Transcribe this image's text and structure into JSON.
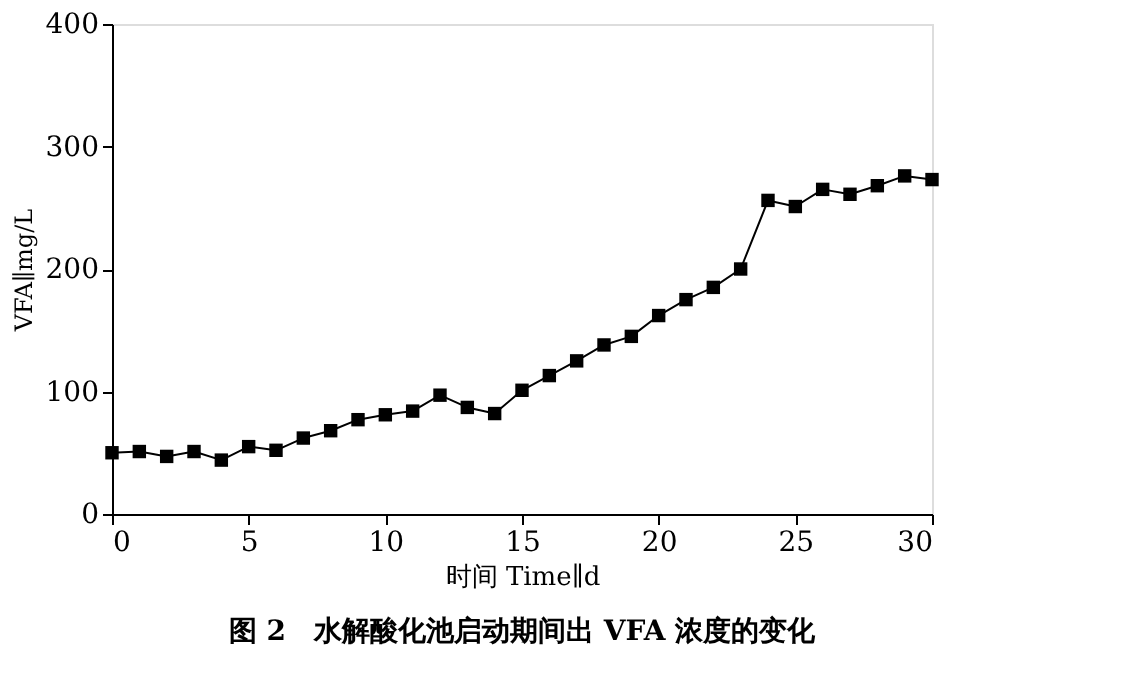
{
  "chart_data": {
    "type": "line",
    "title": "图 2　水解酸化池启动期间出 VFA 浓度的变化",
    "xlabel": "时间 Time∥d",
    "ylabel": "VFA∥mg/L",
    "x": [
      0,
      1,
      2,
      3,
      4,
      5,
      6,
      7,
      8,
      9,
      10,
      11,
      12,
      13,
      14,
      15,
      16,
      17,
      18,
      19,
      20,
      21,
      22,
      23,
      24,
      25,
      26,
      27,
      28,
      29,
      30
    ],
    "series": [
      {
        "color": "#000000",
        "values": [
          50,
          51,
          47,
          51,
          44,
          55,
          52,
          62,
          68,
          77,
          81,
          84,
          97,
          87,
          82,
          101,
          113,
          125,
          138,
          145,
          162,
          175,
          185,
          200,
          256,
          251,
          265,
          261,
          268,
          276,
          273
        ]
      }
    ],
    "xlim": [
      0,
      30
    ],
    "xticks": [
      0,
      5,
      10,
      15,
      20,
      25,
      30
    ],
    "ylim": [
      0,
      400
    ],
    "yticks": [
      0,
      100,
      200,
      300,
      400
    ],
    "grid": false,
    "legend": false,
    "marker": "square",
    "line_style": "solid"
  }
}
